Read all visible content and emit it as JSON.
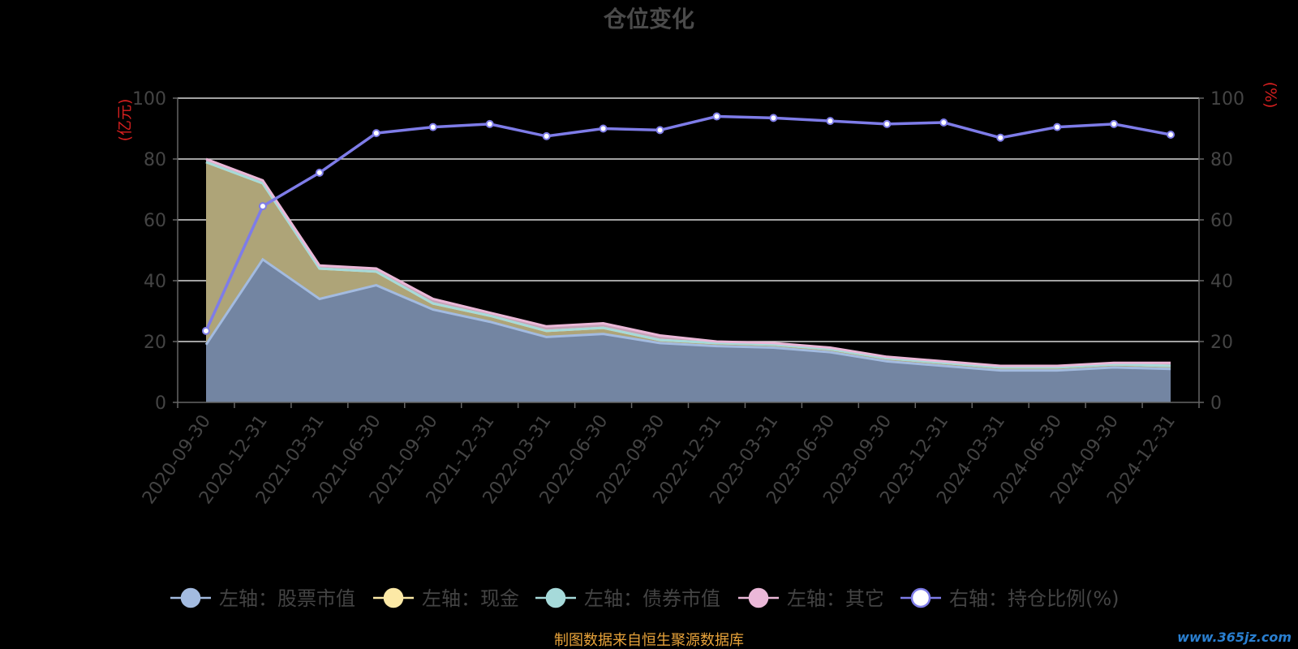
{
  "chart_data": {
    "type": "area",
    "title": "仓位变化",
    "y_left_unit": "(亿元)",
    "y_right_unit": "(%)",
    "y_left_range": [
      0,
      100
    ],
    "y_right_range": [
      0,
      100
    ],
    "y_ticks": [
      0,
      20,
      40,
      60,
      80,
      100
    ],
    "grid": true,
    "legend_position": "bottom",
    "categories": [
      "2020-09-30",
      "2020-12-31",
      "2021-03-31",
      "2021-06-30",
      "2021-09-30",
      "2021-12-31",
      "2022-03-31",
      "2022-06-30",
      "2022-09-30",
      "2022-12-31",
      "2023-03-31",
      "2023-06-30",
      "2023-09-30",
      "2023-12-31",
      "2024-03-31",
      "2024-06-30",
      "2024-09-30",
      "2024-12-31"
    ],
    "series": [
      {
        "name": "左轴：股票市值",
        "axis": "left",
        "color": "#a3bbe0",
        "values": [
          19.0,
          47.0,
          34.0,
          38.5,
          30.5,
          26.5,
          21.5,
          22.5,
          19.5,
          18.5,
          18.0,
          16.5,
          13.5,
          12.0,
          10.5,
          10.5,
          11.5,
          11.0
        ]
      },
      {
        "name": "左轴：现金",
        "axis": "left",
        "color": "#fce9a6",
        "values": [
          60.0,
          25.0,
          10.0,
          4.5,
          2.0,
          2.0,
          2.0,
          2.0,
          1.0,
          1.0,
          1.0,
          1.0,
          1.0,
          1.0,
          1.0,
          1.0,
          1.0,
          1.0
        ]
      },
      {
        "name": "左轴：债券市值",
        "axis": "left",
        "color": "#a6dada",
        "values": [
          0,
          0,
          0,
          0,
          0,
          0,
          0,
          0,
          0,
          0,
          0,
          0,
          0,
          0,
          0,
          0,
          0,
          0
        ]
      },
      {
        "name": "左轴：其它",
        "axis": "left",
        "color": "#ebb8d8",
        "values": [
          1.0,
          1.0,
          1.0,
          1.0,
          1.5,
          1.0,
          1.5,
          1.5,
          1.5,
          0.5,
          0.5,
          0.5,
          0.5,
          0.5,
          0.5,
          0.5,
          0.5,
          1.0
        ]
      },
      {
        "name": "右轴：持仓比例(%)",
        "axis": "right",
        "color": "#7e7ce8",
        "values": [
          23.5,
          64.5,
          75.5,
          88.5,
          90.5,
          91.5,
          87.5,
          90.0,
          89.5,
          94.0,
          93.5,
          92.5,
          91.5,
          92.0,
          87.0,
          90.5,
          91.5,
          88.0
        ]
      }
    ]
  },
  "footer": {
    "source": "制图数据来自恒生聚源数据库",
    "watermark": "www.365jz.com"
  }
}
